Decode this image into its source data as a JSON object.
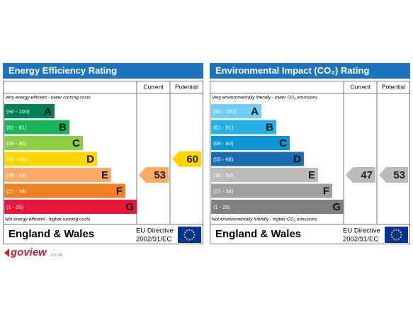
{
  "panels": [
    {
      "title": "Energy Efficiency Rating",
      "header_current": "Current",
      "header_potential": "Potential",
      "top_note": "Very energy efficient - lower running costs",
      "bottom_note": "Not energy efficient - higher running costs",
      "bands": [
        {
          "range": "(92 - 100)",
          "letter": "A",
          "color": "#008054"
        },
        {
          "range": "(81 - 91)",
          "letter": "B",
          "color": "#19b459"
        },
        {
          "range": "(69 - 80)",
          "letter": "C",
          "color": "#8dce46"
        },
        {
          "range": "(55 - 68)",
          "letter": "D",
          "color": "#ffd500"
        },
        {
          "range": "(39 - 54)",
          "letter": "E",
          "color": "#fcaa65"
        },
        {
          "range": "(21 - 38)",
          "letter": "F",
          "color": "#ef8023"
        },
        {
          "range": "(1 - 20)",
          "letter": "G",
          "color": "#e9153b"
        }
      ],
      "region": "England & Wales",
      "directive_line1": "EU Directive",
      "directive_line2": "2002/91/EC",
      "current": 53,
      "potential": 60
    },
    {
      "title": "Environmental Impact (CO₂) Rating",
      "header_current": "Current",
      "header_potential": "Potential",
      "top_note": "Very environmentally friendly - lower CO₂ emissions",
      "bottom_note": "Not environmentally friendly - higher CO₂ emissions",
      "bands": [
        {
          "range": "(92 - 100)",
          "letter": "A",
          "color": "#6dcff6"
        },
        {
          "range": "(81 - 91)",
          "letter": "B",
          "color": "#23b1e6"
        },
        {
          "range": "(69 - 80)",
          "letter": "C",
          "color": "#0c95d4"
        },
        {
          "range": "(55 - 68)",
          "letter": "D",
          "color": "#1a6eb0"
        },
        {
          "range": "(39 - 54)",
          "letter": "E",
          "color": "#bcbcbc"
        },
        {
          "range": "(21 - 38)",
          "letter": "F",
          "color": "#a0a0a0"
        },
        {
          "range": "(1 - 20)",
          "letter": "G",
          "color": "#7f7f7f"
        }
      ],
      "region": "England & Wales",
      "directive_line1": "EU Directive",
      "directive_line2": "2002/91/EC",
      "current": 47,
      "potential": 53
    }
  ],
  "logo": {
    "name": "goview",
    "suffix": ".co.uk"
  }
}
